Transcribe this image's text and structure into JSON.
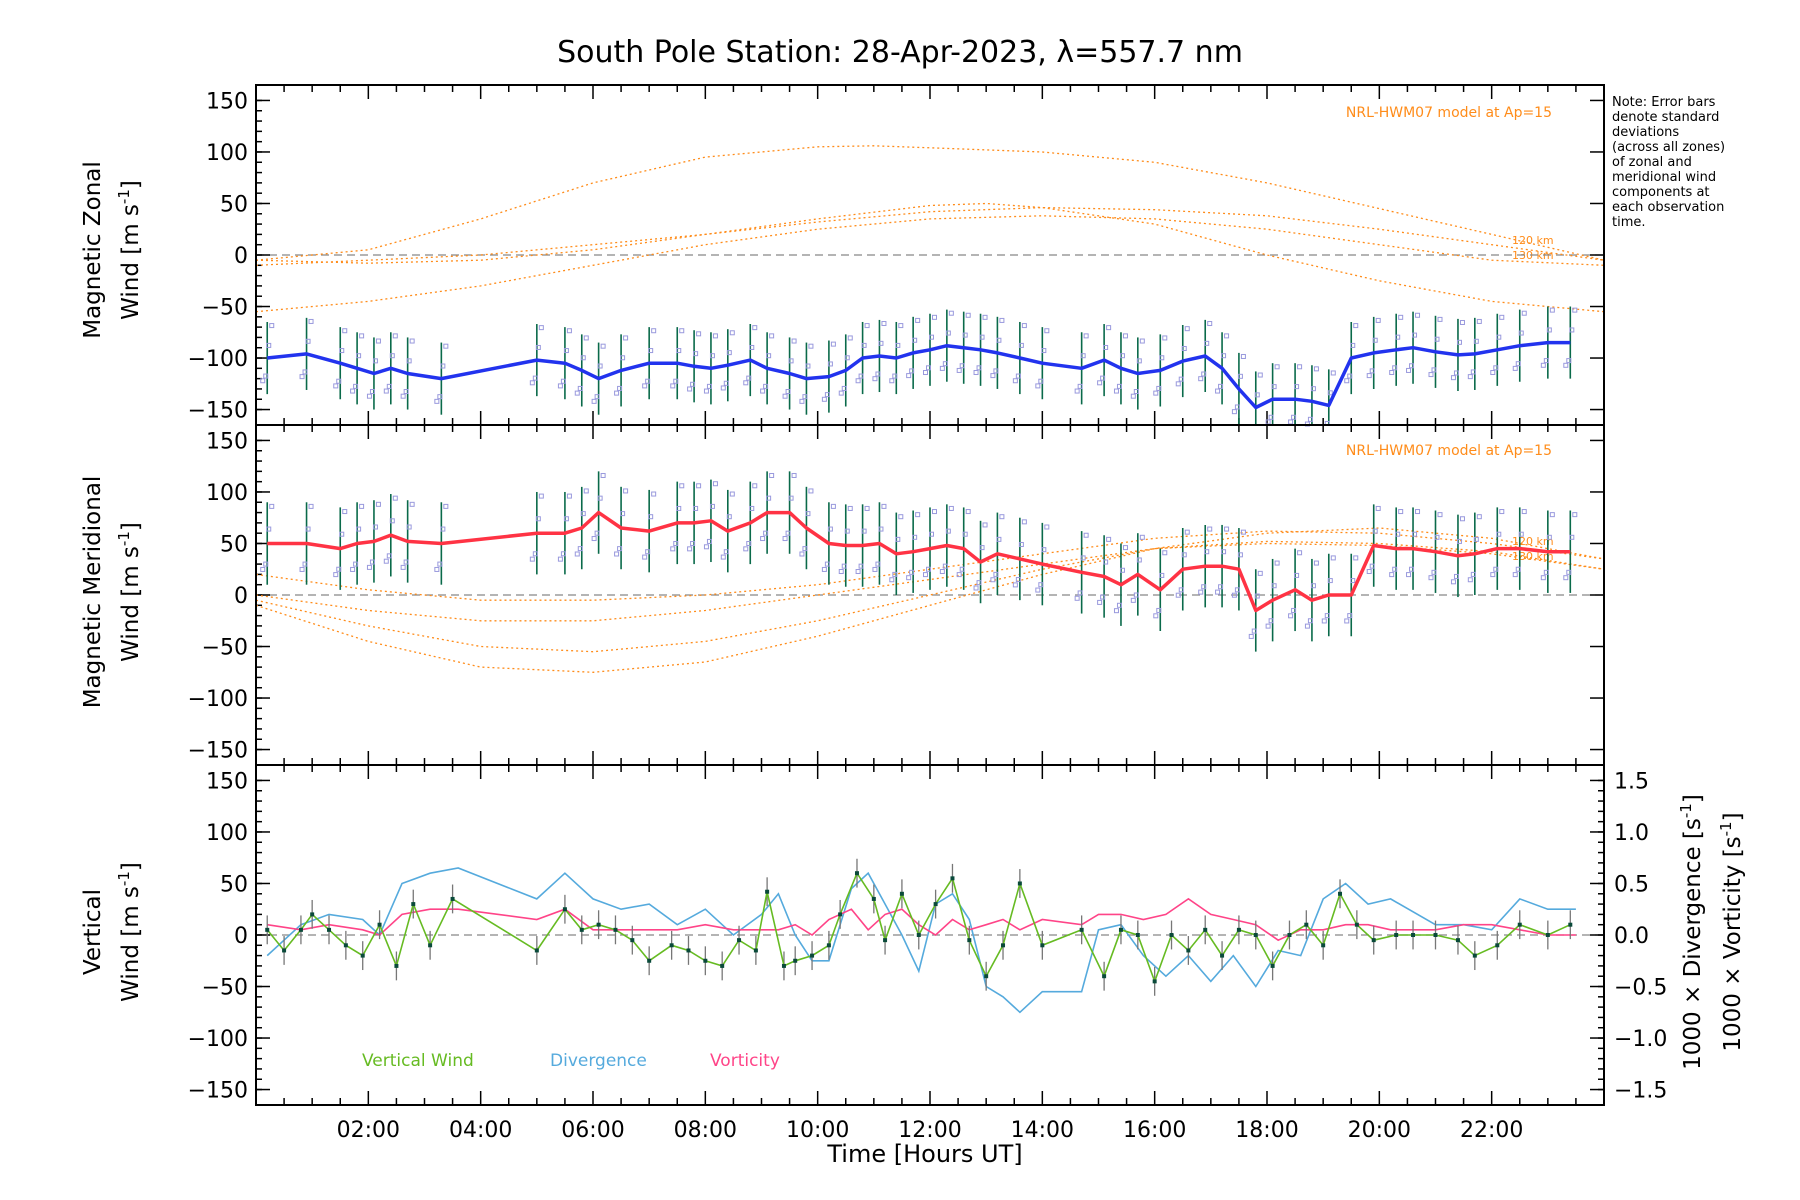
{
  "title": "South Pole Station: 28-Apr-2023, λ=557.7 nm",
  "note_lines": [
    "Note: Error bars",
    "denote standard",
    "deviations",
    "(across all zones)",
    "of zonal and",
    "meridional wind",
    "components at",
    "each observation",
    "time."
  ],
  "xaxis": {
    "label": "Time [Hours UT]",
    "tick_labels": [
      "02:00",
      "04:00",
      "06:00",
      "08:00",
      "10:00",
      "12:00",
      "14:00",
      "16:00",
      "18:00",
      "20:00",
      "22:00"
    ],
    "tick_values": [
      2,
      4,
      6,
      8,
      10,
      12,
      14,
      16,
      18,
      20,
      22
    ],
    "range": [
      0,
      24
    ]
  },
  "colors": {
    "zonal": "#2233ee",
    "meridional": "#ff3344",
    "vertical": "#66bb22",
    "divergence": "#55aadd",
    "vorticity": "#ff4488",
    "model": "#ff8c1a",
    "errorbar": "#0a6a4a",
    "zone_point": "#9999dd"
  },
  "panels": {
    "zonal": {
      "ylabel_line1": "Magnetic Zonal",
      "ylabel_line2": "Wind [m s",
      "ylabel_sup": "-1",
      "ylabel_close": "]",
      "model_label": "NRL-HWM07 model at Ap=15",
      "km_labels": [
        "120 km",
        "130 km"
      ],
      "ytick_labels": [
        "150",
        "100",
        "50",
        "0",
        "−50",
        "−100",
        "−150"
      ]
    },
    "meridional": {
      "ylabel_line1": "Magnetic Meridional",
      "ylabel_line2": "Wind [m s",
      "ylabel_sup": "-1",
      "ylabel_close": "]",
      "model_label": "NRL-HWM07 model at Ap=15",
      "km_labels": [
        "120 km",
        "130 km"
      ],
      "ytick_labels": [
        "150",
        "100",
        "50",
        "0",
        "−50",
        "−100",
        "−150"
      ]
    },
    "vertical": {
      "ylabel_line1": "Vertical",
      "ylabel_line2": "Wind [m s",
      "ylabel_sup": "-1",
      "ylabel_close": "]",
      "ytick_labels": [
        "150",
        "100",
        "50",
        "0",
        "−50",
        "−100",
        "−150"
      ],
      "right_ytick_labels": [
        "1.5",
        "1.0",
        "0.5",
        "0.0",
        "−0.5",
        "−1.0",
        "−1.5"
      ],
      "right_label_div": "1000 × Divergence [s",
      "right_label_vor": "1000 × Vorticity [s",
      "right_label_sup": "-1",
      "right_label_close": "]",
      "legend": [
        "Vertical Wind",
        "Divergence",
        "Vorticity"
      ]
    }
  },
  "chart_data": [
    {
      "type": "line",
      "title": "Magnetic Zonal Wind",
      "ylabel": "Magnetic Zonal Wind [m s-1]",
      "ylim": [
        -165,
        165
      ],
      "xlim": [
        0,
        24
      ],
      "series": [
        {
          "name": "Zonal wind",
          "x": [
            0.2,
            0.9,
            1.5,
            1.8,
            2.1,
            2.4,
            2.7,
            3.3,
            5.0,
            5.5,
            5.8,
            6.1,
            6.5,
            7.0,
            7.5,
            7.8,
            8.1,
            8.4,
            8.8,
            9.1,
            9.5,
            9.8,
            10.2,
            10.5,
            10.8,
            11.1,
            11.4,
            11.7,
            12.0,
            12.3,
            12.6,
            12.9,
            13.2,
            13.6,
            14.0,
            14.7,
            15.1,
            15.4,
            15.7,
            16.1,
            16.5,
            16.9,
            17.2,
            17.5,
            17.8,
            18.1,
            18.5,
            18.8,
            19.1,
            19.5,
            19.9,
            20.3,
            20.6,
            21.0,
            21.4,
            21.7,
            22.1,
            22.5,
            23.0,
            23.4
          ],
          "values": [
            -100,
            -96,
            -105,
            -110,
            -115,
            -110,
            -115,
            -120,
            -102,
            -105,
            -112,
            -120,
            -112,
            -105,
            -105,
            -108,
            -110,
            -107,
            -102,
            -110,
            -115,
            -120,
            -118,
            -112,
            -100,
            -98,
            -100,
            -95,
            -92,
            -88,
            -90,
            -92,
            -95,
            -100,
            -105,
            -110,
            -102,
            -110,
            -115,
            -112,
            -103,
            -98,
            -110,
            -130,
            -148,
            -140,
            -140,
            -142,
            -146,
            -100,
            -95,
            -92,
            -90,
            -94,
            -97,
            -96,
            -92,
            -88,
            -85,
            -85
          ]
        }
      ],
      "errorbar_half_width": 35,
      "model": {
        "name": "NRL-HWM07 model at Ap=15",
        "levels": [
          "120 km",
          "130 km"
        ],
        "curves": [
          {
            "x": [
              0,
              2,
              4,
              6,
              8,
              10,
              11,
              12,
              14,
              16,
              18,
              20,
              22,
              24
            ],
            "y": [
              -5,
              5,
              35,
              70,
              95,
              105,
              106,
              104,
              100,
              90,
              70,
              45,
              20,
              -5
            ]
          },
          {
            "x": [
              0,
              2,
              4,
              6,
              8,
              10,
              12,
              13,
              14,
              16,
              18,
              20,
              22,
              24
            ],
            "y": [
              -10,
              -5,
              0,
              10,
              20,
              35,
              48,
              50,
              46,
              30,
              0,
              -25,
              -45,
              -55
            ]
          },
          {
            "x": [
              0,
              2,
              4,
              6,
              8,
              10,
              12,
              14,
              16,
              18,
              20,
              22,
              24
            ],
            "y": [
              -55,
              -45,
              -30,
              -10,
              10,
              25,
              35,
              38,
              35,
              25,
              10,
              -5,
              -10
            ]
          },
          {
            "x": [
              0,
              2,
              4,
              6,
              8,
              10,
              12,
              14,
              16,
              18,
              20,
              22,
              24
            ],
            "y": [
              -5,
              -8,
              -5,
              5,
              20,
              32,
              42,
              46,
              44,
              38,
              25,
              10,
              -5
            ]
          }
        ]
      }
    },
    {
      "type": "line",
      "title": "Magnetic Meridional Wind",
      "ylabel": "Magnetic Meridional Wind [m s-1]",
      "ylim": [
        -165,
        165
      ],
      "xlim": [
        0,
        24
      ],
      "series": [
        {
          "name": "Meridional wind",
          "x": [
            0.2,
            0.9,
            1.5,
            1.8,
            2.1,
            2.4,
            2.7,
            3.3,
            5.0,
            5.5,
            5.8,
            6.1,
            6.5,
            7.0,
            7.5,
            7.8,
            8.1,
            8.4,
            8.8,
            9.1,
            9.5,
            9.8,
            10.2,
            10.5,
            10.8,
            11.1,
            11.4,
            11.7,
            12.0,
            12.3,
            12.6,
            12.9,
            13.2,
            13.6,
            14.0,
            14.7,
            15.1,
            15.4,
            15.7,
            16.1,
            16.5,
            16.9,
            17.2,
            17.5,
            17.8,
            18.1,
            18.5,
            18.8,
            19.1,
            19.5,
            19.9,
            20.3,
            20.6,
            21.0,
            21.4,
            21.7,
            22.1,
            22.5,
            23.0,
            23.4
          ],
          "values": [
            50,
            50,
            45,
            50,
            52,
            58,
            52,
            50,
            60,
            60,
            65,
            80,
            65,
            62,
            70,
            70,
            72,
            62,
            70,
            80,
            80,
            65,
            50,
            48,
            48,
            50,
            40,
            42,
            45,
            48,
            45,
            32,
            40,
            35,
            30,
            22,
            18,
            10,
            20,
            5,
            25,
            28,
            28,
            25,
            -15,
            -5,
            5,
            -5,
            0,
            0,
            48,
            45,
            45,
            42,
            38,
            40,
            45,
            45,
            42,
            42
          ]
        }
      ],
      "errorbar_half_width": 40,
      "model": {
        "name": "NRL-HWM07 model at Ap=15",
        "levels": [
          "120 km",
          "130 km"
        ],
        "curves": [
          {
            "x": [
              0,
              2,
              4,
              6,
              8,
              10,
              12,
              14,
              16,
              18,
              20,
              22,
              24
            ],
            "y": [
              20,
              5,
              -5,
              -5,
              0,
              10,
              25,
              40,
              55,
              62,
              60,
              50,
              35
            ]
          },
          {
            "x": [
              0,
              2,
              4,
              6,
              8,
              10,
              12,
              14,
              16,
              18,
              20,
              22,
              24
            ],
            "y": [
              0,
              -15,
              -25,
              -25,
              -15,
              0,
              15,
              30,
              45,
              50,
              48,
              40,
              25
            ]
          },
          {
            "x": [
              0,
              2,
              4,
              6,
              8,
              10,
              12,
              14,
              16,
              18,
              20,
              22,
              24
            ],
            "y": [
              -10,
              -45,
              -70,
              -75,
              -65,
              -40,
              -10,
              20,
              45,
              60,
              65,
              55,
              35
            ]
          },
          {
            "x": [
              0,
              2,
              4,
              6,
              8,
              10,
              12,
              14,
              16,
              18,
              20,
              22,
              24
            ],
            "y": [
              -5,
              -30,
              -50,
              -55,
              -45,
              -25,
              0,
              25,
              45,
              52,
              50,
              42,
              25
            ]
          }
        ]
      }
    },
    {
      "type": "line",
      "title": "Vertical Wind, Divergence, Vorticity",
      "ylabel": "Vertical Wind [m s-1]",
      "ylim": [
        -165,
        165
      ],
      "y2lim": [
        -1.65,
        1.65
      ],
      "xlim": [
        0,
        24
      ],
      "series": [
        {
          "name": "Vertical Wind",
          "axis": "left",
          "x": [
            0.2,
            0.5,
            0.8,
            1.0,
            1.3,
            1.6,
            1.9,
            2.2,
            2.5,
            2.8,
            3.1,
            3.5,
            5.0,
            5.5,
            5.8,
            6.1,
            6.4,
            6.7,
            7.0,
            7.4,
            7.7,
            8.0,
            8.3,
            8.6,
            8.9,
            9.1,
            9.4,
            9.6,
            9.9,
            10.2,
            10.4,
            10.7,
            11.0,
            11.2,
            11.5,
            11.8,
            12.1,
            12.4,
            12.7,
            13.0,
            13.3,
            13.6,
            14.0,
            14.7,
            15.1,
            15.4,
            15.7,
            16.0,
            16.3,
            16.6,
            16.9,
            17.2,
            17.5,
            17.8,
            18.1,
            18.4,
            18.7,
            19.0,
            19.3,
            19.6,
            19.9,
            20.3,
            20.6,
            21.0,
            21.4,
            21.7,
            22.1,
            22.5,
            23.0,
            23.4
          ],
          "values": [
            5,
            -15,
            5,
            20,
            5,
            -10,
            -20,
            10,
            -30,
            30,
            -10,
            35,
            -15,
            25,
            5,
            10,
            5,
            -5,
            -25,
            -10,
            -15,
            -25,
            -30,
            -5,
            -15,
            42,
            -30,
            -25,
            -20,
            -10,
            20,
            60,
            35,
            -5,
            40,
            0,
            30,
            55,
            -5,
            -40,
            -10,
            50,
            -10,
            5,
            -40,
            5,
            0,
            -45,
            0,
            -15,
            5,
            -20,
            5,
            0,
            -30,
            0,
            10,
            -10,
            40,
            10,
            -5,
            0,
            0,
            0,
            -5,
            -20,
            -10,
            10,
            0,
            10
          ]
        },
        {
          "name": "Divergence",
          "axis": "right",
          "x": [
            0.2,
            0.8,
            1.3,
            1.9,
            2.2,
            2.6,
            3.1,
            3.6,
            5.0,
            5.5,
            6.0,
            6.5,
            7.0,
            7.5,
            8.0,
            8.5,
            9.0,
            9.3,
            9.6,
            9.9,
            10.2,
            10.6,
            10.9,
            11.2,
            11.5,
            11.8,
            12.1,
            12.4,
            12.7,
            13.0,
            13.3,
            13.6,
            14.0,
            14.7,
            15.0,
            15.4,
            15.8,
            16.2,
            16.6,
            17.0,
            17.4,
            17.8,
            18.2,
            18.6,
            19.0,
            19.4,
            19.8,
            20.2,
            21.0,
            21.5,
            22.0,
            22.5,
            23.0,
            23.5
          ],
          "values": [
            -0.2,
            0.1,
            0.2,
            0.15,
            0.0,
            0.5,
            0.6,
            0.65,
            0.35,
            0.6,
            0.35,
            0.25,
            0.3,
            0.1,
            0.25,
            0.0,
            0.2,
            0.4,
            0.0,
            -0.25,
            -0.25,
            0.45,
            0.6,
            0.3,
            0.0,
            -0.35,
            0.3,
            0.4,
            0.15,
            -0.5,
            -0.6,
            -0.75,
            -0.55,
            -0.55,
            0.05,
            0.1,
            -0.2,
            -0.4,
            -0.2,
            -0.45,
            -0.2,
            -0.5,
            -0.15,
            -0.2,
            0.35,
            0.5,
            0.3,
            0.35,
            0.1,
            0.1,
            0.05,
            0.35,
            0.25,
            0.25
          ]
        },
        {
          "name": "Vorticity",
          "axis": "right",
          "x": [
            0.2,
            0.8,
            1.3,
            1.9,
            2.2,
            2.6,
            3.1,
            3.6,
            5.0,
            5.5,
            6.0,
            6.5,
            7.0,
            7.5,
            8.0,
            8.5,
            9.0,
            9.3,
            9.6,
            9.9,
            10.2,
            10.6,
            10.9,
            11.2,
            11.5,
            11.8,
            12.1,
            12.4,
            12.7,
            13.0,
            13.3,
            13.6,
            14.0,
            14.7,
            15.0,
            15.4,
            15.8,
            16.2,
            16.6,
            17.0,
            17.4,
            17.8,
            18.2,
            18.6,
            19.0,
            19.4,
            19.8,
            20.2,
            21.0,
            21.5,
            22.0,
            22.5,
            23.0,
            23.5
          ],
          "values": [
            0.1,
            0.05,
            0.1,
            0.05,
            0.0,
            0.2,
            0.25,
            0.25,
            0.15,
            0.25,
            0.05,
            0.05,
            0.05,
            0.05,
            0.1,
            0.05,
            0.05,
            0.05,
            0.1,
            0.0,
            0.15,
            0.25,
            0.05,
            0.2,
            0.25,
            0.1,
            0.0,
            0.15,
            0.05,
            0.1,
            0.15,
            0.05,
            0.15,
            0.1,
            0.2,
            0.2,
            0.15,
            0.2,
            0.35,
            0.2,
            0.15,
            0.1,
            -0.05,
            0.05,
            0.05,
            0.1,
            0.1,
            0.05,
            0.05,
            0.1,
            0.1,
            0.05,
            0.0,
            0.0
          ]
        }
      ]
    }
  ]
}
